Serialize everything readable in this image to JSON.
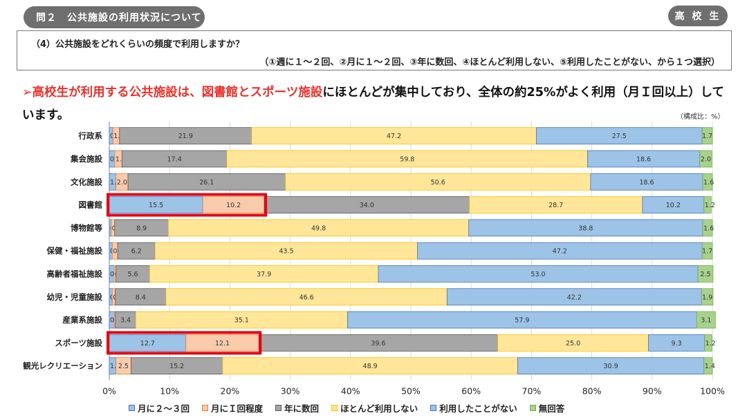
{
  "header": {
    "section_title": "問２　公共施設の利用状況について",
    "badge": "高 校 生"
  },
  "question": {
    "text": "（4）公共施設をどれくらいの頻度で利用しますか？",
    "options_note": "（①週に１～２回、②月に１～２回、③年に数回、④ほとんど利用しない、⑤利用したことがない、から１つ選択）"
  },
  "headline": {
    "marker": "➢",
    "parts": [
      {
        "text": "高校生が利用する公共施設は、図書館とスポーツ施設",
        "red": true
      },
      {
        "text": "にほとんどが集中しており、全体の約25%がよく利用（月Ｉ回以上）しています。",
        "red": false
      }
    ]
  },
  "unit_note": "（構成比：%）",
  "colors": {
    "c1": "#9dc3e6",
    "c2": "#f8cbad",
    "c3": "#a6a6a6",
    "c4": "#ffe699",
    "c5": "#9dc3e6",
    "c6": "#a9d18e",
    "c1_border": "#4472c4",
    "c2_border": "#ed7d31",
    "c3_border": "#595959",
    "c4_border": "#ffc000",
    "c5_border": "#4472c4",
    "c6_border": "#70ad47",
    "highlight": "#e60012"
  },
  "chart_data": {
    "type": "bar",
    "orientation": "horizontal",
    "stacked": true,
    "categories": [
      "行政系",
      "集会施設",
      "文化施設",
      "図書館",
      "博物館等",
      "保健・福祉施設",
      "高齢者福祉施設",
      "幼児・児童施設",
      "産業系施設",
      "スポーツ施設",
      "観光レクリエーション"
    ],
    "series": [
      {
        "name": "月に２～３回",
        "color_key": "c1",
        "values": [
          0.6,
          0.9,
          1.1,
          15.5,
          0.3,
          0.5,
          0.8,
          0.5,
          0.8,
          12.7,
          1.1
        ]
      },
      {
        "name": "月にＩ回程度",
        "color_key": "c2",
        "values": [
          1.1,
          1.2,
          2.0,
          10.2,
          0.6,
          0.9,
          0.3,
          0.5,
          0.2,
          12.1,
          2.5
        ]
      },
      {
        "name": "年に数回",
        "color_key": "c3",
        "values": [
          21.9,
          17.4,
          26.1,
          34.0,
          8.9,
          6.2,
          5.6,
          8.4,
          3.4,
          39.6,
          15.2
        ]
      },
      {
        "name": "ほとんど利用しない",
        "color_key": "c4",
        "values": [
          47.2,
          59.8,
          50.6,
          28.7,
          49.8,
          43.5,
          37.9,
          46.6,
          35.1,
          25.0,
          48.9
        ]
      },
      {
        "name": "利用したことがない",
        "color_key": "c5",
        "values": [
          27.5,
          18.6,
          18.6,
          10.2,
          38.8,
          47.2,
          53.0,
          42.2,
          57.9,
          9.3,
          30.9
        ]
      },
      {
        "name": "無回答",
        "color_key": "c6",
        "values": [
          1.7,
          2.0,
          1.6,
          1.2,
          1.6,
          1.7,
          2.5,
          1.9,
          3.1,
          1.2,
          1.4
        ]
      }
    ],
    "xlim": [
      0,
      100
    ],
    "x_ticks": [
      "0%",
      "10%",
      "20%",
      "30%",
      "40%",
      "50%",
      "60%",
      "70%",
      "80%",
      "90%",
      "100%"
    ],
    "highlighted_categories": [
      "図書館",
      "スポーツ施設"
    ],
    "legend_position": "bottom"
  }
}
